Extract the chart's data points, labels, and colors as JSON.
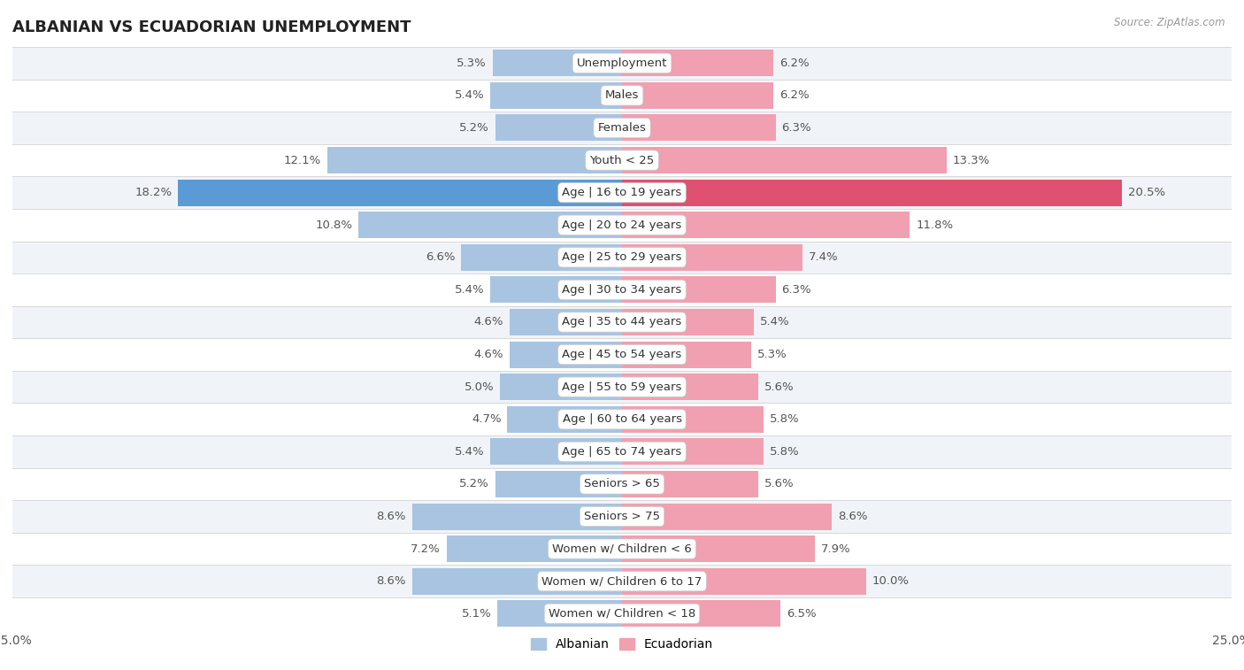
{
  "title": "ALBANIAN VS ECUADORIAN UNEMPLOYMENT",
  "source": "Source: ZipAtlas.com",
  "categories": [
    "Unemployment",
    "Males",
    "Females",
    "Youth < 25",
    "Age | 16 to 19 years",
    "Age | 20 to 24 years",
    "Age | 25 to 29 years",
    "Age | 30 to 34 years",
    "Age | 35 to 44 years",
    "Age | 45 to 54 years",
    "Age | 55 to 59 years",
    "Age | 60 to 64 years",
    "Age | 65 to 74 years",
    "Seniors > 65",
    "Seniors > 75",
    "Women w/ Children < 6",
    "Women w/ Children 6 to 17",
    "Women w/ Children < 18"
  ],
  "albanian": [
    5.3,
    5.4,
    5.2,
    12.1,
    18.2,
    10.8,
    6.6,
    5.4,
    4.6,
    4.6,
    5.0,
    4.7,
    5.4,
    5.2,
    8.6,
    7.2,
    8.6,
    5.1
  ],
  "ecuadorian": [
    6.2,
    6.2,
    6.3,
    13.3,
    20.5,
    11.8,
    7.4,
    6.3,
    5.4,
    5.3,
    5.6,
    5.8,
    5.8,
    5.6,
    8.6,
    7.9,
    10.0,
    6.5
  ],
  "albanian_color": "#a8c4e0",
  "ecuadorian_color": "#f0a0b0",
  "albanian_highlight_color": "#5b9bd5",
  "ecuadorian_highlight_color": "#e05070",
  "row_bg_odd": "#f0f4f8",
  "row_bg_even": "#ffffff",
  "highlight_row": 4,
  "axis_max": 25.0,
  "bar_height": 0.82,
  "label_fontsize": 9.5,
  "cat_label_fontsize": 9.5,
  "title_fontsize": 13,
  "legend_fontsize": 10,
  "value_label_color": "#555555",
  "cat_label_color": "#333333",
  "row_separator_color": "#d8d8d8"
}
